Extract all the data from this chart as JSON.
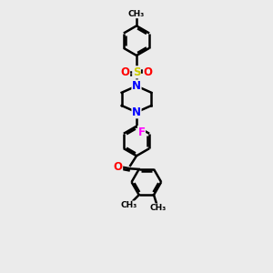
{
  "background_color": "#ebebeb",
  "bond_color": "#000000",
  "atom_colors": {
    "N": "#0000ff",
    "O": "#ff0000",
    "S": "#cccc00",
    "F": "#ff00ff",
    "C": "#000000"
  },
  "figsize": [
    3.0,
    3.0
  ],
  "dpi": 100,
  "xlim": [
    0,
    10
  ],
  "ylim": [
    0,
    13
  ]
}
